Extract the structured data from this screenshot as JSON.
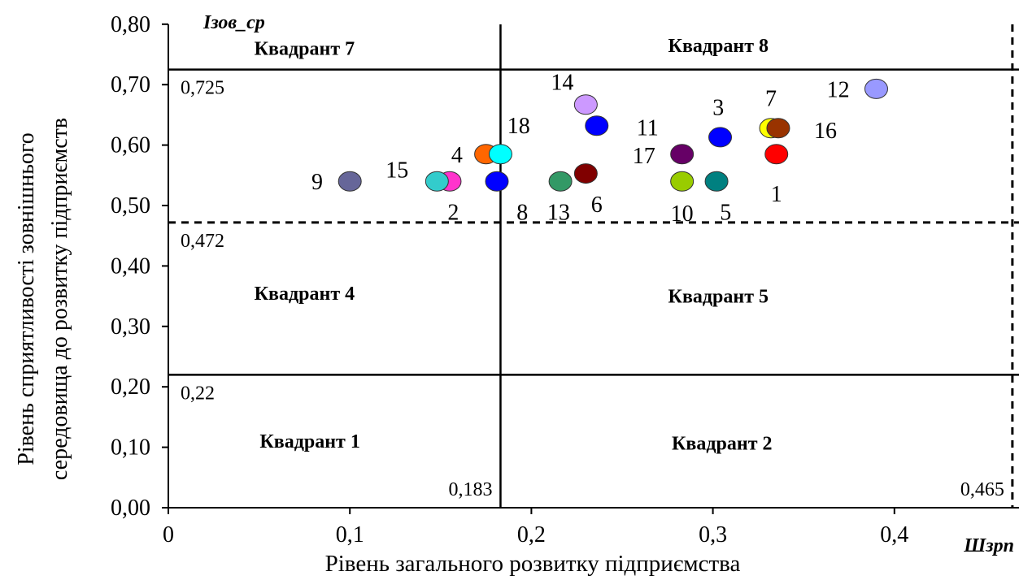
{
  "chart_data": {
    "type": "scatter",
    "x_axis_name": "Шзрп",
    "y_axis_name": "Ізов_ср",
    "xlabel": "Рівень загального розвитку підприємства",
    "ylabel_line1": "Рівень сприятливості зовнішнього",
    "ylabel_line2": "середовища до розвитку підприємств",
    "xlim": [
      0,
      0.47
    ],
    "ylim": [
      0,
      0.8
    ],
    "x_ticks": [
      {
        "value": 0,
        "label": "0"
      },
      {
        "value": 0.1,
        "label": "0,1"
      },
      {
        "value": 0.2,
        "label": "0,2"
      },
      {
        "value": 0.3,
        "label": "0,3"
      },
      {
        "value": 0.4,
        "label": "0,4"
      }
    ],
    "y_ticks": [
      {
        "value": 0.0,
        "label": "0,00"
      },
      {
        "value": 0.1,
        "label": "0,10"
      },
      {
        "value": 0.2,
        "label": "0,20"
      },
      {
        "value": 0.3,
        "label": "0,30"
      },
      {
        "value": 0.4,
        "label": "0,40"
      },
      {
        "value": 0.5,
        "label": "0,50"
      },
      {
        "value": 0.6,
        "label": "0,60"
      },
      {
        "value": 0.7,
        "label": "0,70"
      },
      {
        "value": 0.8,
        "label": "0,80"
      }
    ],
    "thresholds": {
      "x": [
        {
          "value": 0.183,
          "label": "0,183",
          "style": "solid"
        },
        {
          "value": 0.465,
          "label": "0,465",
          "style": "dashed"
        }
      ],
      "y": [
        {
          "value": 0.22,
          "label": "0,22",
          "style": "solid"
        },
        {
          "value": 0.472,
          "label": "0,472",
          "style": "dashed"
        },
        {
          "value": 0.725,
          "label": "0,725",
          "style": "solid"
        }
      ]
    },
    "quadrants": [
      {
        "label": "Квадрант 7",
        "x": 0.075,
        "y": 0.76
      },
      {
        "label": "Квадрант 8",
        "x": 0.303,
        "y": 0.765
      },
      {
        "label": "Квадрант 4",
        "x": 0.075,
        "y": 0.355
      },
      {
        "label": "Квадрант 5",
        "x": 0.303,
        "y": 0.35
      },
      {
        "label": "Квадрант 1",
        "x": 0.078,
        "y": 0.11
      },
      {
        "label": "Квадрант 2",
        "x": 0.305,
        "y": 0.107
      }
    ],
    "points": [
      {
        "id": "1",
        "x": 0.335,
        "y": 0.585,
        "color": "#ff0000",
        "lx": 0.335,
        "ly": 0.52
      },
      {
        "id": "2",
        "x": 0.155,
        "y": 0.54,
        "color": "#ff33cc",
        "lx": 0.157,
        "ly": 0.49
      },
      {
        "id": "3",
        "x": 0.304,
        "y": 0.613,
        "color": "#0000ff",
        "lx": 0.303,
        "ly": 0.663
      },
      {
        "id": "4",
        "x": 0.175,
        "y": 0.585,
        "color": "#ff6600",
        "lx": 0.159,
        "ly": 0.585
      },
      {
        "id": "5",
        "x": 0.302,
        "y": 0.54,
        "color": "#008080",
        "lx": 0.307,
        "ly": 0.49
      },
      {
        "id": "6",
        "x": 0.23,
        "y": 0.553,
        "color": "#800000",
        "lx": 0.236,
        "ly": 0.503
      },
      {
        "id": "7",
        "x": 0.332,
        "y": 0.628,
        "color": "#ffff00",
        "lx": 0.332,
        "ly": 0.678
      },
      {
        "id": "8",
        "x": 0.181,
        "y": 0.54,
        "color": "#0000ff",
        "lx": 0.195,
        "ly": 0.49
      },
      {
        "id": "9",
        "x": 0.1,
        "y": 0.54,
        "color": "#666699",
        "lx": 0.082,
        "ly": 0.54
      },
      {
        "id": "10",
        "x": 0.283,
        "y": 0.54,
        "color": "#99cc00",
        "lx": 0.283,
        "ly": 0.488
      },
      {
        "id": "11",
        "x": 0.236,
        "y": 0.632,
        "color": "#0000ff",
        "lx": 0.264,
        "ly": 0.63
      },
      {
        "id": "12",
        "x": 0.39,
        "y": 0.693,
        "color": "#9999ff",
        "lx": 0.369,
        "ly": 0.693
      },
      {
        "id": "13",
        "x": 0.216,
        "y": 0.54,
        "color": "#339966",
        "lx": 0.215,
        "ly": 0.49
      },
      {
        "id": "14",
        "x": 0.23,
        "y": 0.667,
        "color": "#cc99ff",
        "lx": 0.217,
        "ly": 0.705
      },
      {
        "id": "15",
        "x": 0.148,
        "y": 0.54,
        "color": "#33cccc",
        "lx": 0.126,
        "ly": 0.56
      },
      {
        "id": "16",
        "x": 0.336,
        "y": 0.628,
        "color": "#993300",
        "lx": 0.362,
        "ly": 0.625
      },
      {
        "id": "17",
        "x": 0.283,
        "y": 0.585,
        "color": "#660066",
        "lx": 0.262,
        "ly": 0.583
      },
      {
        "id": "18",
        "x": 0.183,
        "y": 0.585,
        "color": "#00ffff",
        "lx": 0.193,
        "ly": 0.633
      }
    ]
  }
}
